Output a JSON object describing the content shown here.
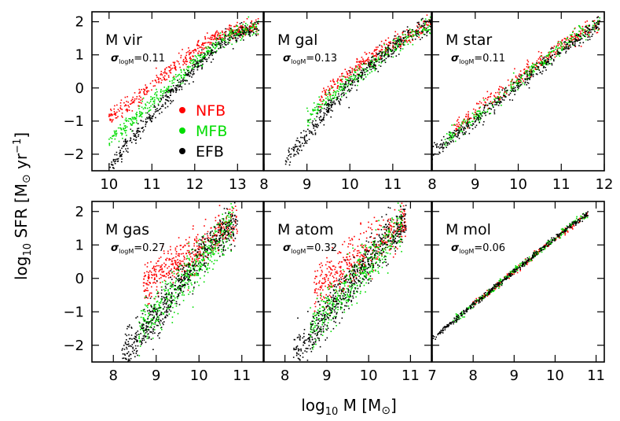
{
  "figure": {
    "ylabel": {
      "pre": "log",
      "sub": "10",
      "mid": " SFR [M",
      "sun": "⊙",
      "unit": " yr",
      "sup": "−1",
      "post": "]"
    },
    "xlabel": {
      "pre": "log",
      "sub": "10",
      "mid": " M [M",
      "sun": "⊙",
      "post": "]"
    }
  },
  "legend": [
    {
      "label": "NFB",
      "color": "#ff0000"
    },
    {
      "label": "MFB",
      "color": "#00dd00"
    },
    {
      "label": "EFB",
      "color": "#000000"
    }
  ],
  "chart_data": [
    {
      "type": "scatter",
      "title": "M vir",
      "sigma_label": "σ",
      "sigma_sub": "logM",
      "sigma_value": "=0.11",
      "xlim": [
        9.6,
        13.6
      ],
      "ylim": [
        -2.5,
        2.3
      ],
      "xticks": [
        "10",
        "11",
        "12",
        "13"
      ],
      "yticks": [
        "−2",
        "−1",
        "0",
        "1",
        "2"
      ],
      "show_ytick_labels": true,
      "show_legend": true,
      "series": [
        {
          "name": "NFB",
          "color": "#ff0000",
          "trend": [
            [
              10.0,
              -0.85
            ],
            [
              10.5,
              -0.45
            ],
            [
              11.0,
              0.1
            ],
            [
              11.5,
              0.6
            ],
            [
              12.0,
              1.1
            ],
            [
              12.5,
              1.55
            ],
            [
              13.0,
              1.75
            ],
            [
              13.5,
              1.85
            ]
          ],
          "scatter": 0.12,
          "n": 420
        },
        {
          "name": "MFB",
          "color": "#00dd00",
          "trend": [
            [
              10.0,
              -1.55
            ],
            [
              10.5,
              -1.05
            ],
            [
              11.0,
              -0.45
            ],
            [
              11.5,
              0.15
            ],
            [
              12.0,
              0.75
            ],
            [
              12.5,
              1.3
            ],
            [
              13.0,
              1.65
            ],
            [
              13.5,
              1.85
            ]
          ],
          "scatter": 0.12,
          "n": 420
        },
        {
          "name": "EFB",
          "color": "#000000",
          "trend": [
            [
              10.0,
              -2.4
            ],
            [
              10.5,
              -1.6
            ],
            [
              11.0,
              -0.85
            ],
            [
              11.5,
              -0.1
            ],
            [
              12.0,
              0.6
            ],
            [
              12.5,
              1.2
            ],
            [
              13.0,
              1.6
            ],
            [
              13.5,
              1.85
            ]
          ],
          "scatter": 0.12,
          "n": 420
        }
      ]
    },
    {
      "type": "scatter",
      "title": "M gal",
      "sigma_label": "σ",
      "sigma_sub": "logM",
      "sigma_value": "=0.13",
      "xlim": [
        8.0,
        11.9
      ],
      "ylim": [
        -2.5,
        2.3
      ],
      "xticks": [
        "8",
        "9",
        "10",
        "11"
      ],
      "yticks": [
        "−2",
        "−1",
        "0",
        "1",
        "2"
      ],
      "show_ytick_labels": false,
      "show_legend": false,
      "series": [
        {
          "name": "NFB",
          "color": "#ff0000",
          "trend": [
            [
              9.3,
              -0.3
            ],
            [
              10.0,
              0.5
            ],
            [
              10.7,
              1.1
            ],
            [
              11.4,
              1.6
            ],
            [
              11.9,
              1.95
            ]
          ],
          "scatter": 0.12,
          "n": 300
        },
        {
          "name": "MFB",
          "color": "#00dd00",
          "trend": [
            [
              9.0,
              -0.9
            ],
            [
              9.7,
              -0.1
            ],
            [
              10.4,
              0.6
            ],
            [
              11.1,
              1.3
            ],
            [
              11.9,
              1.95
            ]
          ],
          "scatter": 0.13,
          "n": 320
        },
        {
          "name": "EFB",
          "color": "#000000",
          "trend": [
            [
              8.5,
              -2.2
            ],
            [
              9.0,
              -1.4
            ],
            [
              9.5,
              -0.6
            ],
            [
              10.0,
              0.1
            ],
            [
              10.5,
              0.7
            ],
            [
              11.0,
              1.2
            ],
            [
              11.5,
              1.7
            ],
            [
              11.9,
              1.95
            ]
          ],
          "scatter": 0.15,
          "n": 420
        }
      ]
    },
    {
      "type": "scatter",
      "title": "M star",
      "sigma_label": "σ",
      "sigma_sub": "logM",
      "sigma_value": "=0.11",
      "xlim": [
        8.0,
        12.0
      ],
      "ylim": [
        -2.5,
        2.3
      ],
      "xticks": [
        "8",
        "9",
        "10",
        "11",
        "12"
      ],
      "yticks": [
        "−2",
        "−1",
        "0",
        "1",
        "2"
      ],
      "show_ytick_labels": false,
      "show_legend": false,
      "series": [
        {
          "name": "NFB",
          "color": "#ff0000",
          "trend": [
            [
              8.5,
              -1.2
            ],
            [
              9.5,
              -0.2
            ],
            [
              10.5,
              0.8
            ],
            [
              11.5,
              1.7
            ],
            [
              11.9,
              1.95
            ]
          ],
          "scatter": 0.12,
          "n": 300
        },
        {
          "name": "MFB",
          "color": "#00dd00",
          "trend": [
            [
              8.3,
              -1.6
            ],
            [
              9.3,
              -0.6
            ],
            [
              10.3,
              0.5
            ],
            [
              11.3,
              1.5
            ],
            [
              11.9,
              1.95
            ]
          ],
          "scatter": 0.12,
          "n": 320
        },
        {
          "name": "EFB",
          "color": "#000000",
          "trend": [
            [
              8.0,
              -2.0
            ],
            [
              9.0,
              -1.0
            ],
            [
              10.0,
              0.1
            ],
            [
              11.0,
              1.1
            ],
            [
              11.9,
              1.95
            ]
          ],
          "scatter": 0.12,
          "n": 380
        }
      ]
    },
    {
      "type": "scatter",
      "title": "M gas",
      "sigma_label": "σ",
      "sigma_sub": "logM",
      "sigma_value": "=0.27",
      "xlim": [
        7.5,
        11.5
      ],
      "ylim": [
        -2.5,
        2.3
      ],
      "xticks": [
        "8",
        "9",
        "10",
        "11"
      ],
      "yticks": [
        "−2",
        "−1",
        "0",
        "1",
        "2"
      ],
      "show_ytick_labels": true,
      "show_legend": false,
      "series": [
        {
          "name": "NFB",
          "color": "#ff0000",
          "trend": [
            [
              8.7,
              -0.2
            ],
            [
              9.3,
              0.3
            ],
            [
              9.9,
              0.8
            ],
            [
              10.4,
              1.3
            ],
            [
              10.9,
              1.7
            ]
          ],
          "scatter": 0.3,
          "n": 450
        },
        {
          "name": "MFB",
          "color": "#00dd00",
          "trend": [
            [
              8.6,
              -1.5
            ],
            [
              9.2,
              -0.7
            ],
            [
              9.8,
              0.1
            ],
            [
              10.3,
              0.9
            ],
            [
              10.8,
              1.6
            ]
          ],
          "scatter": 0.3,
          "n": 500
        },
        {
          "name": "EFB",
          "color": "#000000",
          "trend": [
            [
              8.2,
              -2.3
            ],
            [
              8.7,
              -1.6
            ],
            [
              9.3,
              -0.6
            ],
            [
              9.9,
              0.4
            ],
            [
              10.4,
              1.2
            ],
            [
              10.9,
              1.75
            ]
          ],
          "scatter": 0.3,
          "n": 550
        }
      ]
    },
    {
      "type": "scatter",
      "title": "M atom",
      "sigma_label": "σ",
      "sigma_sub": "logM",
      "sigma_value": "=0.32",
      "xlim": [
        7.5,
        11.5
      ],
      "ylim": [
        -2.5,
        2.3
      ],
      "xticks": [
        "8",
        "9",
        "10",
        "11"
      ],
      "yticks": [
        "−2",
        "−1",
        "0",
        "1",
        "2"
      ],
      "show_ytick_labels": false,
      "show_legend": false,
      "series": [
        {
          "name": "NFB",
          "color": "#ff0000",
          "trend": [
            [
              8.7,
              -0.3
            ],
            [
              9.3,
              0.2
            ],
            [
              9.9,
              0.8
            ],
            [
              10.4,
              1.3
            ],
            [
              10.9,
              1.7
            ]
          ],
          "scatter": 0.33,
          "n": 450
        },
        {
          "name": "MFB",
          "color": "#00dd00",
          "trend": [
            [
              8.6,
              -1.5
            ],
            [
              9.2,
              -0.7
            ],
            [
              9.8,
              0.1
            ],
            [
              10.3,
              0.9
            ],
            [
              10.8,
              1.6
            ]
          ],
          "scatter": 0.33,
          "n": 500
        },
        {
          "name": "EFB",
          "color": "#000000",
          "trend": [
            [
              8.2,
              -2.3
            ],
            [
              8.7,
              -1.6
            ],
            [
              9.3,
              -0.6
            ],
            [
              9.9,
              0.4
            ],
            [
              10.4,
              1.2
            ],
            [
              10.9,
              1.75
            ]
          ],
          "scatter": 0.33,
          "n": 550
        }
      ]
    },
    {
      "type": "scatter",
      "title": "M mol",
      "sigma_label": "σ",
      "sigma_sub": "logM",
      "sigma_value": "=0.06",
      "xlim": [
        7.0,
        11.2
      ],
      "ylim": [
        -2.5,
        2.3
      ],
      "xticks": [
        "7",
        "8",
        "9",
        "10",
        "11"
      ],
      "yticks": [
        "−2",
        "−1",
        "0",
        "1",
        "2"
      ],
      "show_ytick_labels": false,
      "show_legend": false,
      "series": [
        {
          "name": "NFB",
          "color": "#ff0000",
          "trend": [
            [
              8.0,
              -0.8
            ],
            [
              9.0,
              0.2
            ],
            [
              10.0,
              1.2
            ],
            [
              10.8,
              1.9
            ]
          ],
          "scatter": 0.05,
          "n": 200
        },
        {
          "name": "MFB",
          "color": "#00dd00",
          "trend": [
            [
              7.5,
              -1.3
            ],
            [
              8.5,
              -0.3
            ],
            [
              9.5,
              0.7
            ],
            [
              10.5,
              1.7
            ],
            [
              10.8,
              1.9
            ]
          ],
          "scatter": 0.05,
          "n": 250
        },
        {
          "name": "EFB",
          "color": "#000000",
          "trend": [
            [
              7.0,
              -1.8
            ],
            [
              8.0,
              -0.8
            ],
            [
              9.0,
              0.2
            ],
            [
              10.0,
              1.2
            ],
            [
              10.8,
              1.95
            ]
          ],
          "scatter": 0.04,
          "n": 380
        }
      ]
    }
  ]
}
